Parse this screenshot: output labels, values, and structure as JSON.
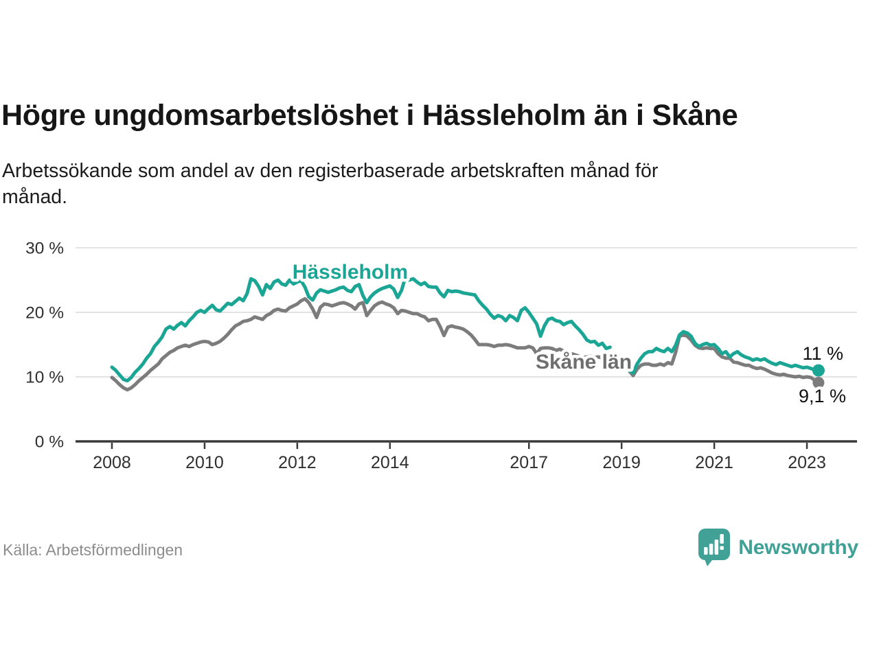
{
  "header": {
    "title": "Högre ungdomsarbetslöshet i Hässleholm än i Skåne",
    "subtitle": "Arbetssökande som andel av den registerbaserade arbetskraften månad för\nmånad."
  },
  "footer": {
    "source": "Källa: Arbetsförmedlingen",
    "brand": "Newsworthy"
  },
  "colors": {
    "hassleholm": "#1aa595",
    "skane": "#7c7c7c",
    "skane_label": "#6e6e6e",
    "brand_teal": "#41a196",
    "grid": "#d8d8d8",
    "axis": "#3a3a3a",
    "axis_text": "#2f2f2f",
    "end_label_text": "#111111"
  },
  "chart_data": {
    "type": "line",
    "title": "Högre ungdomsarbetslöshet i Hässleholm än i Skåne",
    "subtitle": "Arbetssökande som andel av den registerbaserade arbetskraften månad för månad.",
    "x_unit": "month",
    "start": "2008-01",
    "end": "2023-04",
    "data_gap": [
      "2018-11",
      "2019-02"
    ],
    "xlim": [
      2007.2,
      2024.1
    ],
    "ylim": [
      0,
      30
    ],
    "grid": "horizontal",
    "y_ticks": [
      {
        "v": 0,
        "label": "0 %"
      },
      {
        "v": 10,
        "label": "10 %"
      },
      {
        "v": 20,
        "label": "20 %"
      },
      {
        "v": 30,
        "label": "30 %"
      }
    ],
    "x_ticks": [
      {
        "v": 2008,
        "label": "2008"
      },
      {
        "v": 2010,
        "label": "2010"
      },
      {
        "v": 2012,
        "label": "2012"
      },
      {
        "v": 2014,
        "label": "2014"
      },
      {
        "v": 2017,
        "label": "2017"
      },
      {
        "v": 2019,
        "label": "2019"
      },
      {
        "v": 2021,
        "label": "2021"
      },
      {
        "v": 2023,
        "label": "2023"
      }
    ],
    "series": [
      {
        "name": "Skåne län",
        "end_label": "9,1 %",
        "values": [
          9.9,
          9.4,
          8.8,
          8.3,
          8.0,
          8.3,
          8.8,
          9.4,
          9.9,
          10.4,
          11.0,
          11.5,
          12.0,
          12.8,
          13.3,
          13.8,
          14.1,
          14.5,
          14.7,
          14.9,
          14.7,
          15.0,
          15.2,
          15.4,
          15.5,
          15.4,
          15.0,
          15.2,
          15.5,
          16.0,
          16.6,
          17.3,
          17.9,
          18.2,
          18.6,
          18.7,
          18.9,
          19.3,
          19.1,
          18.9,
          19.5,
          19.8,
          20.3,
          20.5,
          20.3,
          20.2,
          20.7,
          21.0,
          21.3,
          21.8,
          22.1,
          21.5,
          20.5,
          19.2,
          20.8,
          21.3,
          21.2,
          21.0,
          21.2,
          21.4,
          21.5,
          21.3,
          21.0,
          20.5,
          21.3,
          21.5,
          19.5,
          20.3,
          21.0,
          21.4,
          21.6,
          21.3,
          21.1,
          20.7,
          19.8,
          20.3,
          20.2,
          20.0,
          19.8,
          19.8,
          19.5,
          19.3,
          18.7,
          18.9,
          18.9,
          17.8,
          16.4,
          17.7,
          17.9,
          17.7,
          17.6,
          17.4,
          17.0,
          16.5,
          15.8,
          15.0,
          15.0,
          15.0,
          14.9,
          14.7,
          14.9,
          14.9,
          15.0,
          14.9,
          14.7,
          14.5,
          14.5,
          14.5,
          14.7,
          14.5,
          13.6,
          14.4,
          14.5,
          14.5,
          14.4,
          14.1,
          14.3,
          14.0,
          13.8,
          13.6,
          13.4,
          13.2,
          13.0,
          13.1,
          13.2,
          13.0,
          13.1,
          12.9,
          12.8,
          12.9,
          null,
          null,
          null,
          null,
          10.9,
          10.2,
          11.2,
          11.8,
          12.0,
          12.0,
          11.8,
          11.8,
          12.0,
          11.8,
          12.2,
          12.0,
          13.8,
          16.3,
          16.5,
          16.3,
          15.7,
          14.9,
          14.5,
          14.4,
          14.5,
          14.4,
          14.4,
          13.6,
          13.1,
          12.9,
          12.9,
          12.3,
          12.2,
          12.0,
          11.8,
          11.8,
          11.5,
          11.3,
          11.4,
          11.2,
          10.9,
          10.6,
          10.4,
          10.3,
          10.4,
          10.2,
          10.1,
          10.0,
          10.1,
          9.9,
          10.0,
          9.9,
          9.5,
          9.1
        ]
      },
      {
        "name": "Hässleholm",
        "end_label": "11 %",
        "values": [
          11.5,
          11.0,
          10.3,
          9.6,
          9.4,
          9.9,
          10.7,
          11.3,
          12.0,
          12.9,
          13.6,
          14.7,
          15.4,
          16.2,
          17.4,
          17.8,
          17.4,
          18.0,
          18.4,
          17.9,
          18.7,
          19.3,
          20.0,
          20.3,
          20.0,
          20.6,
          21.1,
          20.4,
          20.2,
          20.8,
          21.4,
          21.2,
          21.7,
          22.2,
          21.8,
          22.9,
          25.2,
          24.9,
          24.0,
          22.7,
          24.3,
          23.7,
          24.7,
          25.0,
          24.4,
          24.2,
          25.0,
          24.4,
          24.7,
          24.9,
          23.9,
          22.4,
          21.9,
          23.0,
          23.5,
          23.3,
          23.1,
          23.3,
          23.5,
          23.8,
          23.9,
          23.4,
          23.2,
          24.0,
          24.3,
          22.6,
          21.5,
          22.4,
          23.0,
          23.4,
          23.7,
          23.9,
          24.1,
          23.6,
          22.3,
          23.4,
          25.4,
          25.0,
          25.2,
          24.7,
          24.3,
          24.6,
          24.0,
          23.9,
          23.9,
          23.0,
          22.4,
          23.4,
          23.2,
          23.3,
          23.2,
          23.0,
          22.9,
          22.8,
          22.7,
          21.8,
          21.1,
          20.5,
          19.7,
          19.1,
          19.5,
          19.3,
          18.7,
          19.5,
          19.2,
          18.7,
          20.3,
          20.7,
          20.0,
          19.1,
          18.2,
          16.3,
          17.9,
          18.9,
          19.1,
          18.7,
          18.6,
          18.1,
          18.4,
          18.6,
          17.9,
          17.3,
          16.6,
          15.7,
          15.4,
          15.5,
          14.9,
          15.2,
          14.4,
          14.6,
          null,
          null,
          null,
          null,
          11.0,
          10.6,
          12.0,
          12.9,
          13.6,
          13.9,
          13.9,
          14.4,
          14.1,
          13.9,
          14.4,
          13.9,
          14.9,
          16.5,
          17.0,
          16.8,
          16.3,
          15.2,
          14.7,
          15.0,
          15.2,
          14.9,
          15.0,
          14.4,
          13.6,
          13.9,
          13.1,
          13.6,
          13.9,
          13.4,
          13.1,
          12.9,
          12.6,
          12.8,
          12.6,
          12.8,
          12.4,
          12.1,
          11.9,
          12.2,
          12.0,
          11.8,
          11.6,
          11.8,
          11.6,
          11.4,
          11.5,
          11.3,
          11.1,
          11.0
        ]
      }
    ],
    "annotations": [
      {
        "text": "Hässleholm",
        "series": "Hässleholm"
      },
      {
        "text": "Skåne län",
        "series": "Skåne län"
      }
    ]
  }
}
